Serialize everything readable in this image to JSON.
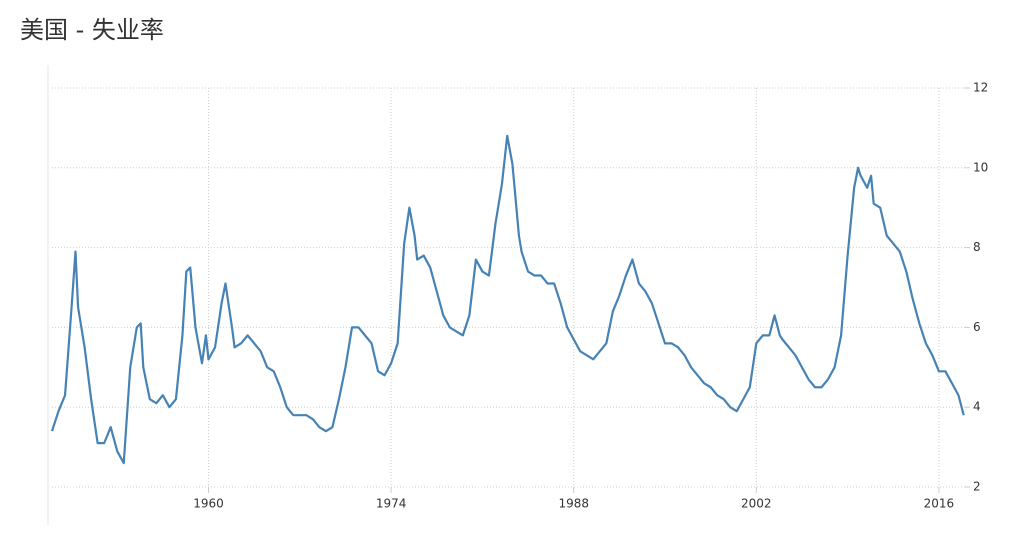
{
  "chart_data": {
    "type": "line",
    "title": "美国 - 失业率",
    "xlim": [
      1948,
      2018
    ],
    "xticks": [
      1960,
      1974,
      1988,
      2002,
      2016
    ],
    "ylim": [
      2,
      12
    ],
    "yticks": [
      2,
      4,
      6,
      8,
      10,
      12
    ],
    "grid": true,
    "series": [
      {
        "color": "#4682b4",
        "x": [
          1948.0,
          1948.5,
          1949.0,
          1949.5,
          1949.8,
          1950.0,
          1950.5,
          1951.0,
          1951.5,
          1952.0,
          1952.5,
          1953.0,
          1953.5,
          1954.0,
          1954.5,
          1954.8,
          1955.0,
          1955.5,
          1956.0,
          1956.5,
          1957.0,
          1957.5,
          1958.0,
          1958.3,
          1958.6,
          1959.0,
          1959.5,
          1959.8,
          1960.0,
          1960.5,
          1961.0,
          1961.3,
          1961.8,
          1962.0,
          1962.5,
          1963.0,
          1963.5,
          1964.0,
          1964.5,
          1965.0,
          1965.5,
          1966.0,
          1966.5,
          1967.0,
          1967.5,
          1968.0,
          1968.5,
          1969.0,
          1969.5,
          1970.0,
          1970.5,
          1971.0,
          1971.5,
          1972.0,
          1972.5,
          1973.0,
          1973.5,
          1974.0,
          1974.5,
          1975.0,
          1975.4,
          1975.8,
          1976.0,
          1976.5,
          1977.0,
          1977.5,
          1978.0,
          1978.5,
          1979.0,
          1979.5,
          1980.0,
          1980.5,
          1981.0,
          1981.5,
          1982.0,
          1982.5,
          1982.9,
          1983.3,
          1983.8,
          1984.0,
          1984.5,
          1985.0,
          1985.5,
          1986.0,
          1986.5,
          1987.0,
          1987.5,
          1988.0,
          1988.5,
          1989.0,
          1989.5,
          1990.0,
          1990.5,
          1991.0,
          1991.5,
          1992.0,
          1992.5,
          1993.0,
          1993.5,
          1994.0,
          1994.5,
          1995.0,
          1995.5,
          1996.0,
          1996.5,
          1997.0,
          1997.5,
          1998.0,
          1998.5,
          1999.0,
          1999.5,
          2000.0,
          2000.5,
          2001.0,
          2001.5,
          2002.0,
          2002.5,
          2003.0,
          2003.4,
          2003.8,
          2004.0,
          2004.5,
          2005.0,
          2005.5,
          2006.0,
          2006.5,
          2007.0,
          2007.5,
          2008.0,
          2008.5,
          2009.0,
          2009.5,
          2009.8,
          2010.0,
          2010.5,
          2010.8,
          2011.0,
          2011.5,
          2012.0,
          2012.5,
          2013.0,
          2013.5,
          2014.0,
          2014.5,
          2015.0,
          2015.5,
          2016.0,
          2016.5,
          2017.0,
          2017.5,
          2017.9
        ],
        "values": [
          3.4,
          3.9,
          4.3,
          6.5,
          7.9,
          6.5,
          5.5,
          4.2,
          3.1,
          3.1,
          3.5,
          2.9,
          2.6,
          5.0,
          6.0,
          6.1,
          5.0,
          4.2,
          4.1,
          4.3,
          4.0,
          4.2,
          5.8,
          7.4,
          7.5,
          6.0,
          5.1,
          5.8,
          5.2,
          5.5,
          6.6,
          7.1,
          6.0,
          5.5,
          5.6,
          5.8,
          5.6,
          5.4,
          5.0,
          4.9,
          4.5,
          4.0,
          3.8,
          3.8,
          3.8,
          3.7,
          3.5,
          3.4,
          3.5,
          4.2,
          5.0,
          6.0,
          6.0,
          5.8,
          5.6,
          4.9,
          4.8,
          5.1,
          5.6,
          8.1,
          9.0,
          8.3,
          7.7,
          7.8,
          7.5,
          6.9,
          6.3,
          6.0,
          5.9,
          5.8,
          6.3,
          7.7,
          7.4,
          7.3,
          8.6,
          9.6,
          10.8,
          10.1,
          8.3,
          7.9,
          7.4,
          7.3,
          7.3,
          7.1,
          7.1,
          6.6,
          6.0,
          5.7,
          5.4,
          5.3,
          5.2,
          5.4,
          5.6,
          6.4,
          6.8,
          7.3,
          7.7,
          7.1,
          6.9,
          6.6,
          6.1,
          5.6,
          5.6,
          5.5,
          5.3,
          5.0,
          4.8,
          4.6,
          4.5,
          4.3,
          4.2,
          4.0,
          3.9,
          4.2,
          4.5,
          5.6,
          5.8,
          5.8,
          6.3,
          5.8,
          5.7,
          5.5,
          5.3,
          5.0,
          4.7,
          4.5,
          4.5,
          4.7,
          5.0,
          5.8,
          7.8,
          9.5,
          10.0,
          9.8,
          9.5,
          9.8,
          9.1,
          9.0,
          8.3,
          8.1,
          7.9,
          7.4,
          6.7,
          6.1,
          5.6,
          5.3,
          4.9,
          4.9,
          4.6,
          4.3,
          3.8
        ]
      }
    ]
  }
}
